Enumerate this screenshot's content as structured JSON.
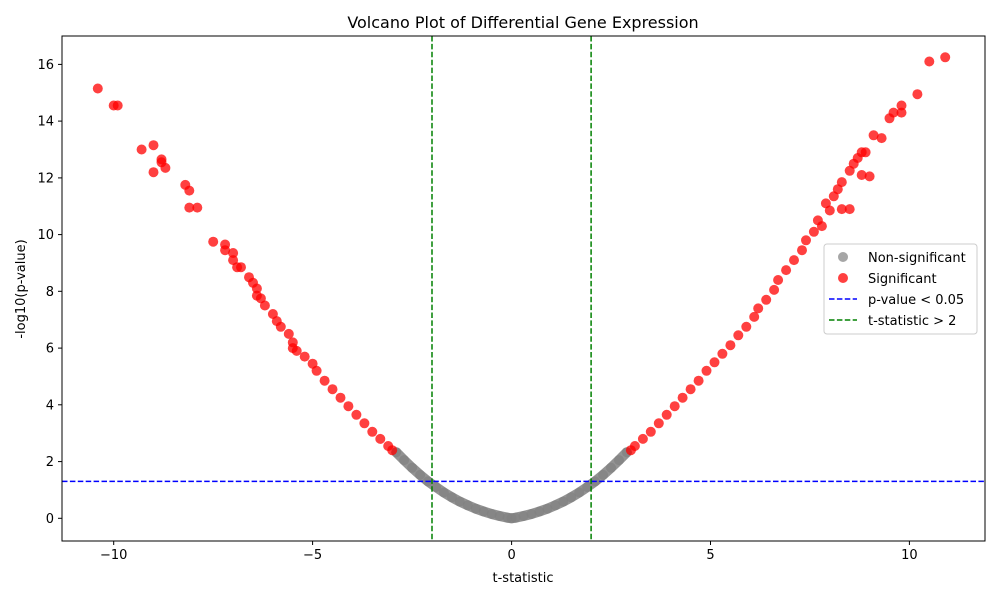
{
  "chart_data": {
    "type": "scatter",
    "title": "Volcano Plot of Differential Gene Expression",
    "xlabel": "t-statistic",
    "ylabel": "-log10(p-value)",
    "xlim": [
      -11.3,
      11.9
    ],
    "ylim": [
      -0.8,
      17.0
    ],
    "grid": false,
    "legend_position": "center-right",
    "x_ticks": [
      -10,
      -5,
      0,
      5,
      10
    ],
    "x_tick_labels": [
      "−10",
      "−5",
      "0",
      "5",
      "10"
    ],
    "y_ticks": [
      0,
      2,
      4,
      6,
      8,
      10,
      12,
      14,
      16
    ],
    "y_tick_labels": [
      "0",
      "2",
      "4",
      "6",
      "8",
      "10",
      "12",
      "14",
      "16"
    ],
    "series": [
      {
        "name": "Non-significant",
        "color": "#808080",
        "x": [
          -2.9,
          -2.7,
          -2.5,
          -2.3,
          -2.1,
          -1.9,
          -1.7,
          -1.5,
          -1.3,
          -1.1,
          -0.9,
          -0.7,
          -0.5,
          -0.3,
          -0.1,
          0.0,
          0.1,
          0.3,
          0.5,
          0.7,
          0.9,
          1.1,
          1.3,
          1.5,
          1.7,
          1.9,
          2.1,
          2.3,
          2.5,
          2.7,
          2.9
        ],
        "y": [
          2.33,
          2.05,
          1.78,
          1.53,
          1.3,
          1.1,
          0.91,
          0.74,
          0.59,
          0.46,
          0.34,
          0.24,
          0.15,
          0.08,
          0.02,
          0.0,
          0.02,
          0.08,
          0.15,
          0.24,
          0.34,
          0.46,
          0.59,
          0.74,
          0.91,
          1.1,
          1.3,
          1.53,
          1.78,
          2.05,
          2.33
        ]
      },
      {
        "name": "Significant",
        "color": "#ff0000",
        "x": [
          -10.4,
          -10.0,
          -9.9,
          -9.3,
          -9.0,
          -9.0,
          -8.8,
          -8.8,
          -8.7,
          -8.2,
          -8.1,
          -8.1,
          -7.9,
          -7.5,
          -7.2,
          -7.2,
          -7.0,
          -7.0,
          -6.9,
          -6.8,
          -6.6,
          -6.5,
          -6.4,
          -6.4,
          -6.3,
          -6.2,
          -6.0,
          -5.9,
          -5.8,
          -5.6,
          -5.5,
          -5.5,
          -5.4,
          -5.2,
          -5.0,
          -4.9,
          -4.7,
          -4.5,
          -4.3,
          -4.1,
          -3.9,
          -3.7,
          -3.5,
          -3.3,
          -3.1,
          -3.0,
          3.0,
          3.1,
          3.3,
          3.5,
          3.7,
          3.9,
          4.1,
          4.3,
          4.5,
          4.7,
          4.9,
          5.1,
          5.3,
          5.5,
          5.7,
          5.9,
          6.1,
          6.2,
          6.4,
          6.6,
          6.7,
          6.9,
          7.1,
          7.3,
          7.4,
          7.6,
          7.7,
          7.8,
          7.9,
          8.0,
          8.1,
          8.2,
          8.3,
          8.3,
          8.5,
          8.5,
          8.6,
          8.7,
          8.8,
          8.8,
          8.9,
          9.0,
          9.1,
          9.3,
          9.5,
          9.6,
          9.8,
          9.8,
          10.2,
          10.5,
          10.9
        ],
        "y": [
          15.15,
          14.55,
          14.55,
          13.0,
          13.15,
          12.2,
          12.65,
          12.55,
          12.35,
          11.75,
          11.55,
          10.95,
          10.95,
          9.75,
          9.65,
          9.45,
          9.35,
          9.1,
          8.85,
          8.85,
          8.5,
          8.3,
          8.1,
          7.85,
          7.75,
          7.5,
          7.2,
          6.95,
          6.75,
          6.5,
          6.2,
          6.0,
          5.9,
          5.7,
          5.45,
          5.2,
          4.85,
          4.55,
          4.25,
          3.95,
          3.65,
          3.35,
          3.05,
          2.8,
          2.55,
          2.4,
          2.4,
          2.55,
          2.8,
          3.05,
          3.35,
          3.65,
          3.95,
          4.25,
          4.55,
          4.85,
          5.2,
          5.5,
          5.8,
          6.1,
          6.45,
          6.75,
          7.1,
          7.4,
          7.7,
          8.05,
          8.4,
          8.75,
          9.1,
          9.45,
          9.8,
          10.1,
          10.5,
          10.3,
          11.1,
          10.85,
          11.35,
          11.6,
          10.9,
          11.85,
          12.25,
          10.9,
          12.5,
          12.7,
          12.1,
          12.9,
          12.9,
          12.05,
          13.5,
          13.4,
          14.1,
          14.3,
          14.55,
          14.3,
          14.95,
          16.1,
          16.25
        ]
      }
    ],
    "reference_lines": [
      {
        "name": "p-value < 0.05",
        "orientation": "horizontal",
        "value": 1.3,
        "color": "#0000ff",
        "style": "dashed"
      },
      {
        "name": "t-statistic > 2",
        "orientation": "vertical",
        "values": [
          -2,
          2
        ],
        "color": "#008000",
        "style": "dashed"
      }
    ]
  }
}
